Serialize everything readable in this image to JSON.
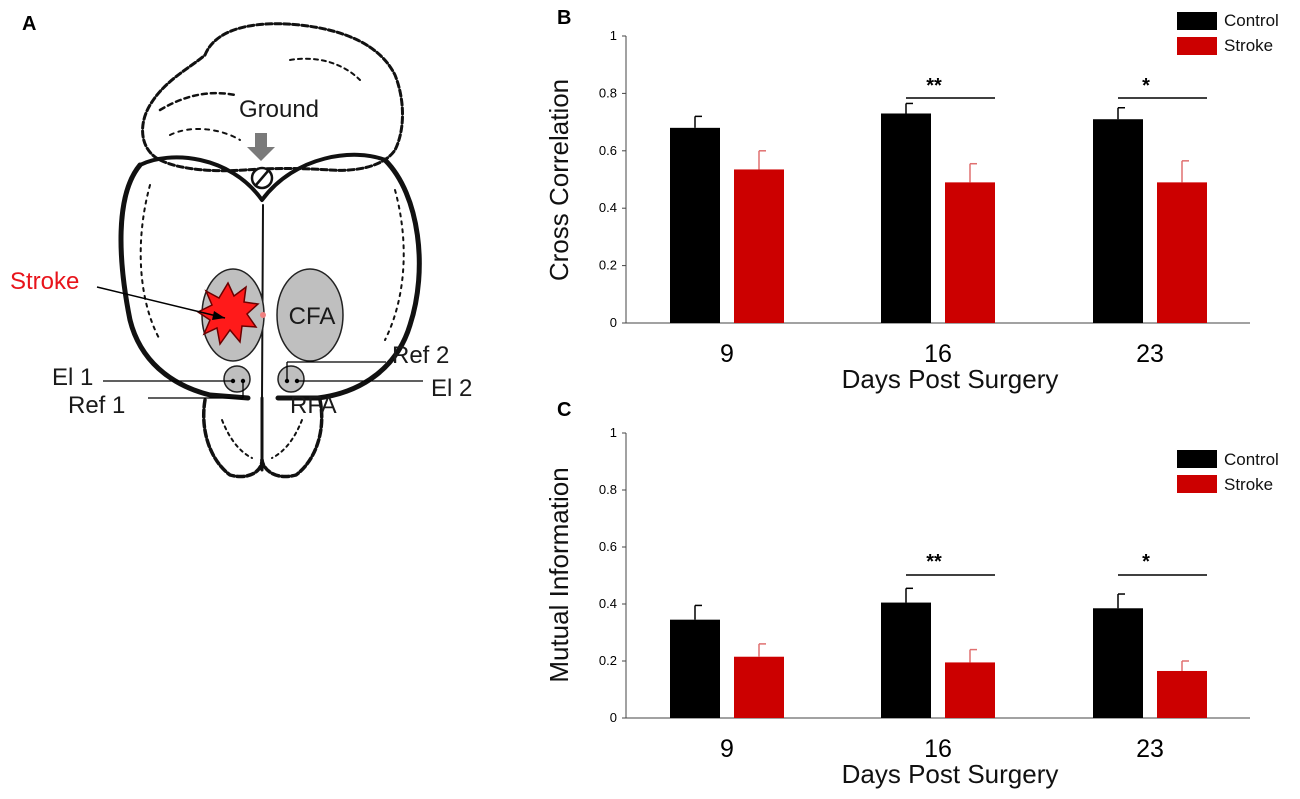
{
  "panel_labels": {
    "a": "A",
    "b": "B",
    "c": "C"
  },
  "diagram": {
    "ground_label": "Ground",
    "stroke_label": "Stroke",
    "cfa_label": "CFA",
    "ref2_label": "Ref 2",
    "el1_label": "El 1",
    "el2_label": "El 2",
    "ref1_label": "Ref 1",
    "rfa_label": "RFA",
    "stroke_color": "#e8141b",
    "region_fill": "#bfbfbf"
  },
  "colors": {
    "control": "#000000",
    "stroke": "#cc0000",
    "stroke_err": "#e07070"
  },
  "chart_data": [
    {
      "id": "B",
      "type": "bar",
      "categories": [
        "9",
        "16",
        "23"
      ],
      "series": [
        {
          "name": "Control",
          "values": [
            0.68,
            0.73,
            0.71
          ],
          "errors": [
            0.04,
            0.035,
            0.04
          ]
        },
        {
          "name": "Stroke",
          "values": [
            0.535,
            0.49,
            0.49
          ],
          "errors": [
            0.065,
            0.065,
            0.075
          ]
        }
      ],
      "xlabel": "Days Post Surgery",
      "ylabel": "Cross Correlation",
      "ylim": [
        0,
        1
      ],
      "yticks": [
        "0",
        "0.2",
        "0.4",
        "0.6",
        "0.8",
        "1"
      ],
      "significance": [
        {
          "category": "16",
          "label": "**"
        },
        {
          "category": "23",
          "label": "*"
        }
      ],
      "legend": [
        "Control",
        "Stroke"
      ],
      "legend_position": "top-right"
    },
    {
      "id": "C",
      "type": "bar",
      "categories": [
        "9",
        "16",
        "23"
      ],
      "series": [
        {
          "name": "Control",
          "values": [
            0.345,
            0.405,
            0.385
          ],
          "errors": [
            0.05,
            0.05,
            0.05
          ]
        },
        {
          "name": "Stroke",
          "values": [
            0.215,
            0.195,
            0.165
          ],
          "errors": [
            0.045,
            0.045,
            0.035
          ]
        }
      ],
      "xlabel": "Days Post Surgery",
      "ylabel": "Mutual Information",
      "ylim": [
        0,
        1
      ],
      "yticks": [
        "0",
        "0.2",
        "0.4",
        "0.6",
        "0.8",
        "1"
      ],
      "significance": [
        {
          "category": "16",
          "label": "**"
        },
        {
          "category": "23",
          "label": "*"
        }
      ],
      "legend": [
        "Control",
        "Stroke"
      ],
      "legend_position": "top-right"
    }
  ]
}
